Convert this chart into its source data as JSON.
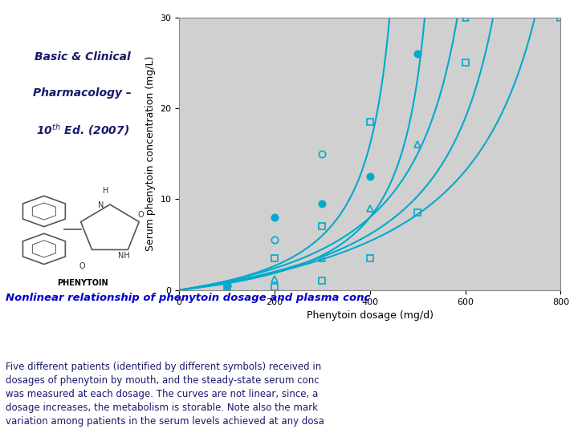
{
  "title_box_color": "#FFFF00",
  "title_box_text_color": "#1a1a6e",
  "xlabel": "Phenytoin dosage (mg/d)",
  "ylabel": "Serum phenytoin concentration (mg/L)",
  "xlim": [
    0,
    800
  ],
  "ylim": [
    0,
    30
  ],
  "xticks": [
    0,
    200,
    400,
    600,
    800
  ],
  "yticks": [
    0,
    10,
    20,
    30
  ],
  "plot_bg_color": "#d0d0d0",
  "curve_color": "#00aacc",
  "caption_title": "Nonlinear relationship of phenytoin dosage and plasma conc",
  "caption_title_color": "#0000cc",
  "caption_body_color": "#1a1a6e",
  "patients": [
    {
      "symbol": "o",
      "filled": false,
      "Vmax": 500,
      "Km": 4
    },
    {
      "symbol": "s",
      "filled": false,
      "Vmax": 700,
      "Km": 6
    },
    {
      "symbol": "o",
      "filled": true,
      "Vmax": 575,
      "Km": 3.5
    },
    {
      "symbol": "^",
      "filled": false,
      "Vmax": 790,
      "Km": 6
    },
    {
      "symbol": "s",
      "filled": false,
      "Vmax": 920,
      "Km": 7
    }
  ]
}
